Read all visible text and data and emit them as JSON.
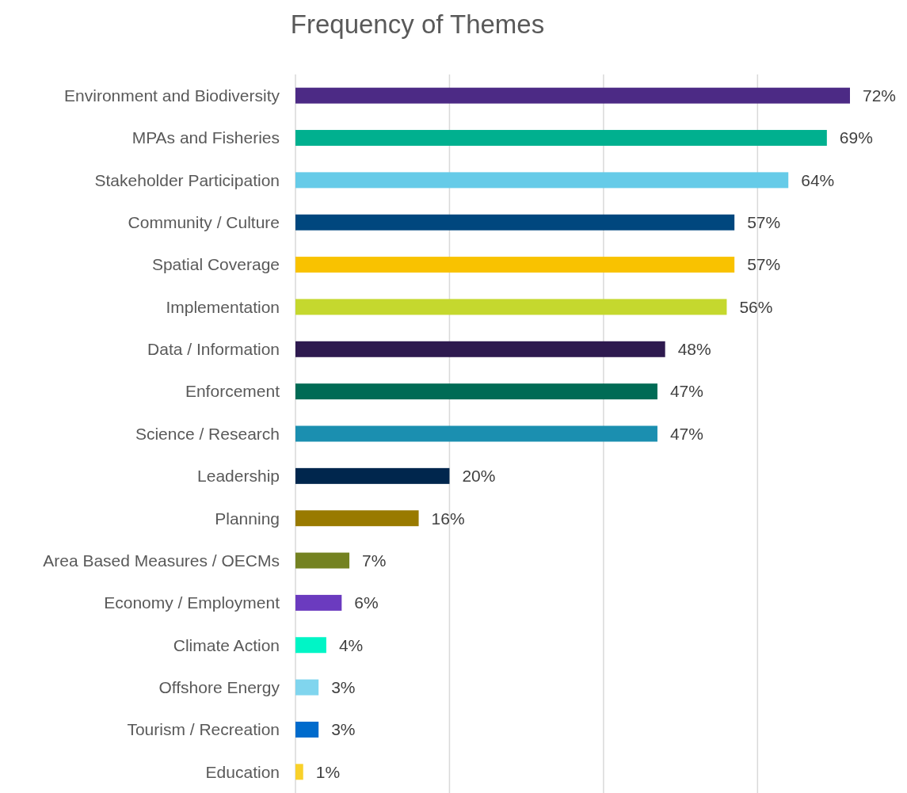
{
  "chart_data": {
    "type": "bar",
    "orientation": "horizontal",
    "title": "Frequency of Themes",
    "categories": [
      "Environment and Biodiversity",
      "MPAs and Fisheries",
      "Stakeholder Participation",
      "Community / Culture",
      "Spatial Coverage",
      "Implementation",
      "Data / Information",
      "Enforcement",
      "Science / Research",
      "Leadership",
      "Planning",
      "Area Based Measures / OECMs",
      "Economy / Employment",
      "Climate Action",
      "Offshore Energy",
      "Tourism / Recreation",
      "Education"
    ],
    "values": [
      72,
      69,
      64,
      57,
      57,
      56,
      48,
      47,
      47,
      20,
      16,
      7,
      6,
      4,
      3,
      3,
      1
    ],
    "value_labels": [
      "72%",
      "69%",
      "64%",
      "57%",
      "57%",
      "56%",
      "48%",
      "47%",
      "47%",
      "20%",
      "16%",
      "7%",
      "6%",
      "4%",
      "3%",
      "3%",
      "1%"
    ],
    "colors": [
      "#4c2a85",
      "#00b08f",
      "#66cbe8",
      "#00477e",
      "#f9c200",
      "#c5d82e",
      "#2e1a4f",
      "#006b55",
      "#1b8fb0",
      "#00264d",
      "#997a00",
      "#748221",
      "#6b3bbf",
      "#00f5c6",
      "#80d5ee",
      "#006bcc",
      "#f9d12a"
    ],
    "xticks": [
      {
        "value": 0,
        "label": null
      },
      {
        "value": 20,
        "label": null
      },
      {
        "value": 40,
        "label": null
      },
      {
        "value": 60,
        "label": null
      }
    ],
    "grid": "x",
    "tick_labels": "y"
  }
}
